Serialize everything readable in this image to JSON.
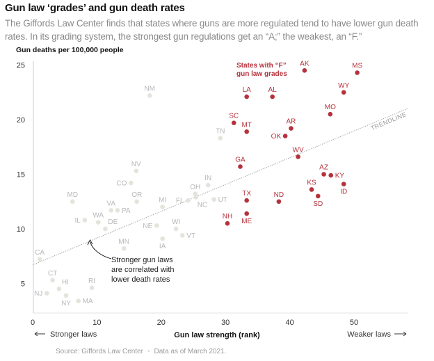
{
  "header": {
    "title": "Gun law ‘grades’ and gun death rates",
    "subtitle": "The Giffords Law Center finds that states where guns are more regulated tend to have lower gun death rates. In its grading system, the strongest gun regulations get an “A;” the weakest, an “F.”"
  },
  "footer": {
    "source": "Source: Giffords Law Center",
    "separator": "•",
    "note": "Data as of March 2021."
  },
  "colors": {
    "f_grade": "#b5323c",
    "other": "#e4e4dd",
    "other_label": "#b8b8b8",
    "trendline": "#9a9a9a",
    "axis": "#cccccc"
  },
  "chart_data": {
    "type": "scatter",
    "title": "Gun law ‘grades’ and gun death rates",
    "xlabel": "Gun law strength (rank)",
    "ylabel": "Gun deaths per 100,000 people",
    "x_direction_left": "← Stronger laws",
    "x_direction_right": "Weaker laws →",
    "x_direction_left_text": "Stronger laws",
    "x_direction_right_text": "Weaker laws",
    "xlim": [
      0,
      58.5
    ],
    "ylim": [
      3,
      25.5
    ],
    "xticks": [
      0,
      10,
      20,
      30,
      40,
      50
    ],
    "yticks": [
      5,
      10,
      15,
      20,
      25
    ],
    "grid": false,
    "legend": {
      "label_line1": "States with “F”",
      "label_line2": "gun law grades",
      "placement": "top-center"
    },
    "trendline": {
      "label": "TRENDLINE",
      "start": [
        0,
        6.7
      ],
      "end": [
        58.3,
        21.0
      ]
    },
    "annotation": {
      "lines": [
        "Stronger gun laws",
        "are correlated with",
        "lower death rates"
      ],
      "points_to": [
        9,
        9.2
      ]
    },
    "series": [
      {
        "name": "F grade",
        "color": "#b5323c",
        "points": [
          {
            "state": "AK",
            "x": 42.3,
            "y": 24.5,
            "label_pos": "above"
          },
          {
            "state": "MS",
            "x": 50.5,
            "y": 24.3,
            "label_pos": "above"
          },
          {
            "state": "LA",
            "x": 33.3,
            "y": 22.1,
            "label_pos": "above"
          },
          {
            "state": "AL",
            "x": 37.3,
            "y": 22.1,
            "label_pos": "above"
          },
          {
            "state": "WY",
            "x": 48.4,
            "y": 22.5,
            "label_pos": "above"
          },
          {
            "state": "MO",
            "x": 46.3,
            "y": 20.5,
            "label_pos": "above"
          },
          {
            "state": "SC",
            "x": 31.3,
            "y": 19.7,
            "label_pos": "above"
          },
          {
            "state": "MT",
            "x": 33.3,
            "y": 18.9,
            "label_pos": "above"
          },
          {
            "state": "AR",
            "x": 40.2,
            "y": 19.2,
            "label_pos": "above"
          },
          {
            "state": "OK",
            "x": 39.3,
            "y": 18.5,
            "label_pos": "left"
          },
          {
            "state": "WV",
            "x": 41.3,
            "y": 16.6,
            "label_pos": "above"
          },
          {
            "state": "GA",
            "x": 32.3,
            "y": 15.7,
            "label_pos": "above"
          },
          {
            "state": "AZ",
            "x": 45.3,
            "y": 15.0,
            "label_pos": "above"
          },
          {
            "state": "KY",
            "x": 46.4,
            "y": 14.9,
            "label_pos": "right"
          },
          {
            "state": "ID",
            "x": 48.4,
            "y": 14.1,
            "label_pos": "below"
          },
          {
            "state": "KS",
            "x": 43.4,
            "y": 13.6,
            "label_pos": "above"
          },
          {
            "state": "SD",
            "x": 44.4,
            "y": 13.0,
            "label_pos": "below"
          },
          {
            "state": "TX",
            "x": 33.3,
            "y": 12.6,
            "label_pos": "above"
          },
          {
            "state": "ND",
            "x": 38.3,
            "y": 12.5,
            "label_pos": "above"
          },
          {
            "state": "ME",
            "x": 33.3,
            "y": 11.4,
            "label_pos": "below"
          },
          {
            "state": "NH",
            "x": 30.3,
            "y": 10.5,
            "label_pos": "above"
          }
        ]
      },
      {
        "name": "Other grades",
        "color": "#e4e4dd",
        "points": [
          {
            "state": "NM",
            "x": 18.2,
            "y": 22.2,
            "label_pos": "above"
          },
          {
            "state": "TN",
            "x": 29.2,
            "y": 18.3,
            "label_pos": "above"
          },
          {
            "state": "IN",
            "x": 27.3,
            "y": 14.0,
            "label_pos": "above"
          },
          {
            "state": "UT",
            "x": 28.2,
            "y": 12.7,
            "label_pos": "right"
          },
          {
            "state": "OH",
            "x": 25.3,
            "y": 13.2,
            "label_pos": "above"
          },
          {
            "state": "NC",
            "x": 25.4,
            "y": 12.9,
            "label_pos": "below-right"
          },
          {
            "state": "FL",
            "x": 24.2,
            "y": 12.6,
            "label_pos": "left"
          },
          {
            "state": "MI",
            "x": 20.2,
            "y": 12.0,
            "label_pos": "above"
          },
          {
            "state": "NV",
            "x": 16.1,
            "y": 15.3,
            "label_pos": "above"
          },
          {
            "state": "CO",
            "x": 15.3,
            "y": 14.2,
            "label_pos": "left"
          },
          {
            "state": "OR",
            "x": 16.2,
            "y": 12.5,
            "label_pos": "above"
          },
          {
            "state": "VA",
            "x": 12.2,
            "y": 11.7,
            "label_pos": "above"
          },
          {
            "state": "PA",
            "x": 13.2,
            "y": 11.7,
            "label_pos": "right"
          },
          {
            "state": "MD",
            "x": 6.2,
            "y": 12.5,
            "label_pos": "above"
          },
          {
            "state": "IL",
            "x": 8.1,
            "y": 10.8,
            "label_pos": "left"
          },
          {
            "state": "WA",
            "x": 10.2,
            "y": 10.6,
            "label_pos": "above"
          },
          {
            "state": "DE",
            "x": 11.3,
            "y": 10.0,
            "label_pos": "above-right"
          },
          {
            "state": "NE",
            "x": 19.3,
            "y": 10.3,
            "label_pos": "left"
          },
          {
            "state": "WI",
            "x": 22.3,
            "y": 10.0,
            "label_pos": "above"
          },
          {
            "state": "VT",
            "x": 23.3,
            "y": 9.4,
            "label_pos": "right"
          },
          {
            "state": "IA",
            "x": 20.2,
            "y": 9.1,
            "label_pos": "below"
          },
          {
            "state": "MN",
            "x": 14.2,
            "y": 8.2,
            "label_pos": "above"
          },
          {
            "state": "CA",
            "x": 1.1,
            "y": 7.2,
            "label_pos": "above"
          },
          {
            "state": "CT",
            "x": 3.1,
            "y": 5.3,
            "label_pos": "above"
          },
          {
            "state": "HI",
            "x": 4.1,
            "y": 4.5,
            "label_pos": "above-right"
          },
          {
            "state": "NJ",
            "x": 2.2,
            "y": 4.1,
            "label_pos": "left"
          },
          {
            "state": "NY",
            "x": 5.2,
            "y": 3.9,
            "label_pos": "below"
          },
          {
            "state": "RI",
            "x": 9.2,
            "y": 4.6,
            "label_pos": "above"
          },
          {
            "state": "MA",
            "x": 7.1,
            "y": 3.4,
            "label_pos": "right"
          }
        ]
      }
    ]
  }
}
